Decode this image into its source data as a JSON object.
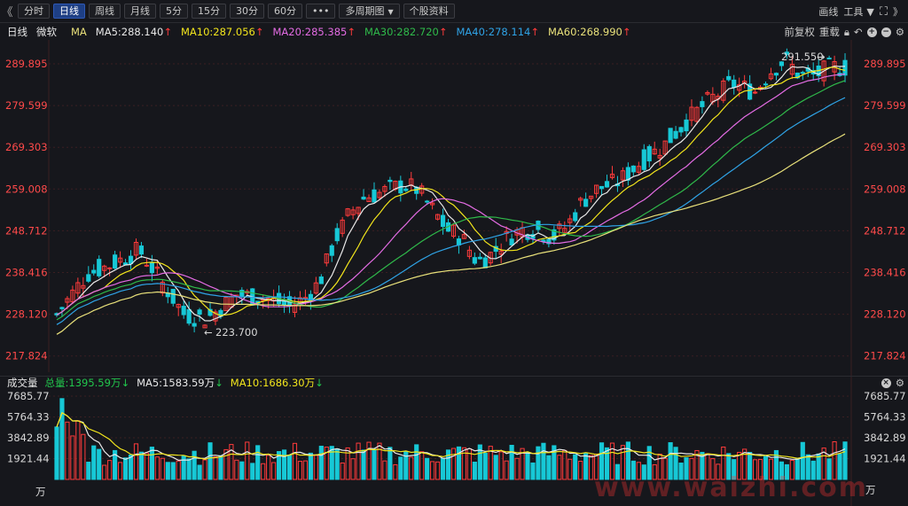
{
  "toolbar": {
    "collapse_label": "《",
    "tabs": [
      {
        "label": "分时",
        "active": false
      },
      {
        "label": "日线",
        "active": true
      },
      {
        "label": "周线",
        "active": false
      },
      {
        "label": "月线",
        "active": false
      },
      {
        "label": "5分",
        "active": false
      },
      {
        "label": "15分",
        "active": false
      },
      {
        "label": "30分",
        "active": false
      },
      {
        "label": "60分",
        "active": false
      }
    ],
    "more_label": "•••",
    "multi_period_label": "多周期图",
    "stock_info_label": "个股资料",
    "draw_label": "画线",
    "tools_label": "工具",
    "expand_label": "》"
  },
  "info": {
    "period": "日线",
    "stock_name": "微软",
    "indicator": "MA",
    "ma": [
      {
        "label": "MA5:288.140",
        "color": "#e8e8e8"
      },
      {
        "label": "MA10:287.056",
        "color": "#f2e51c"
      },
      {
        "label": "MA20:285.385",
        "color": "#e46ce4"
      },
      {
        "label": "MA30:282.720",
        "color": "#2fb94a"
      },
      {
        "label": "MA40:278.114",
        "color": "#2fa3e6"
      },
      {
        "label": "MA60:268.990",
        "color": "#e8e07a"
      }
    ],
    "adjust_label": "前复权",
    "reset_label": "重载"
  },
  "volume": {
    "title": "成交量",
    "total": "总量:1395.59万",
    "ma5": "MA5:1583.59万",
    "ma10": "MA10:1686.30万",
    "axis_labels": [
      "7685.77",
      "5764.33",
      "3842.89",
      "1921.44"
    ],
    "unit": "万",
    "ma5_color": "#e8e8e8",
    "ma10_color": "#f2e51c",
    "total_color": "#22c74d"
  },
  "price_axis": {
    "labels": [
      "289.895",
      "279.599",
      "269.303",
      "259.008",
      "248.712",
      "238.416",
      "228.120",
      "217.824"
    ],
    "max_annotation": "291.550",
    "min_annotation": "223.700"
  },
  "colors": {
    "up": "#ff3b3b",
    "down": "#17c8d6",
    "grid": "#3a1f22",
    "background": "#16171c"
  },
  "watermark": "www.waizhi.com"
}
